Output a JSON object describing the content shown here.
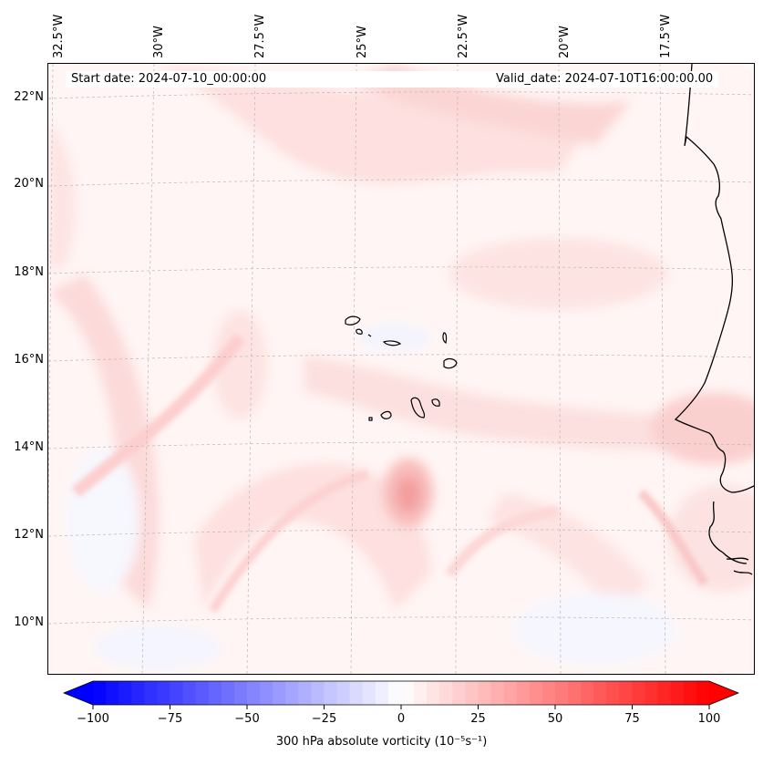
{
  "map": {
    "projection": "map",
    "lon_labels": [
      "32.5°W",
      "30°W",
      "27.5°W",
      "25°W",
      "22.5°W",
      "20°W",
      "17.5°W"
    ],
    "lat_labels": [
      "22°N",
      "20°N",
      "18°N",
      "16°N",
      "14°N",
      "12°N",
      "10°N"
    ],
    "start_date": "Start date: 2024-07-10_00:00:00",
    "valid_date": "Valid_date: 2024-07-10T16:00:00.00",
    "gridlines": true,
    "field": "300 hPa absolute vorticity",
    "colors": {
      "negative": "#0000ff",
      "zero": "#ffffff",
      "positive": "#ff0000",
      "coast": "#000000"
    }
  },
  "colorbar": {
    "ticks": [
      "−100",
      "−75",
      "−50",
      "−25",
      "0",
      "25",
      "50",
      "75",
      "100"
    ],
    "tick_values": [
      -100,
      -75,
      -50,
      -25,
      0,
      25,
      50,
      75,
      100
    ],
    "range": [
      -100,
      100
    ],
    "extend": "both",
    "title": "300 hPa absolute vorticity (10⁻⁵s⁻¹)"
  }
}
